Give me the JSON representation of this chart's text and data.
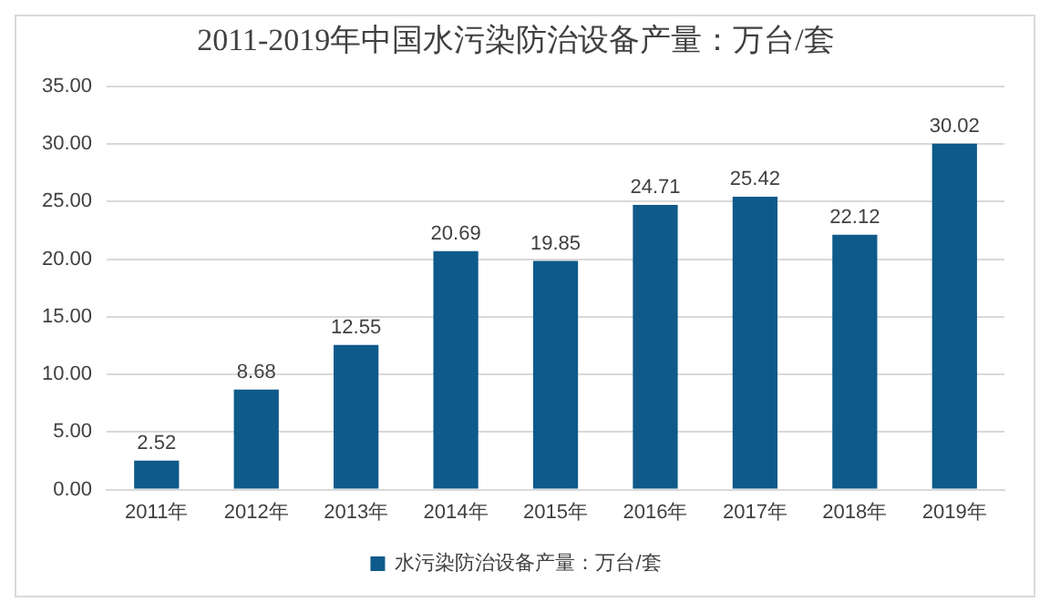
{
  "chart_data": {
    "type": "bar",
    "title": "2011-2019年中国水污染防治设备产量：万台/套",
    "categories": [
      "2011年",
      "2012年",
      "2013年",
      "2014年",
      "2015年",
      "2016年",
      "2017年",
      "2018年",
      "2019年"
    ],
    "series": [
      {
        "name": "水污染防治设备产量：万台/套",
        "color": "#0e5a8a",
        "values": [
          2.52,
          8.68,
          12.55,
          20.69,
          19.85,
          24.71,
          25.42,
          22.12,
          30.02
        ]
      }
    ],
    "ylim": [
      0,
      35
    ],
    "yticks": [
      {
        "value": 0,
        "label": "0.00"
      },
      {
        "value": 5,
        "label": "5.00"
      },
      {
        "value": 10,
        "label": "10.00"
      },
      {
        "value": 15,
        "label": "15.00"
      },
      {
        "value": 20,
        "label": "20.00"
      },
      {
        "value": 25,
        "label": "25.00"
      },
      {
        "value": 30,
        "label": "30.00"
      },
      {
        "value": 35,
        "label": "35.00"
      }
    ],
    "grid": "y",
    "legend": "bottom",
    "data_labels": true
  }
}
